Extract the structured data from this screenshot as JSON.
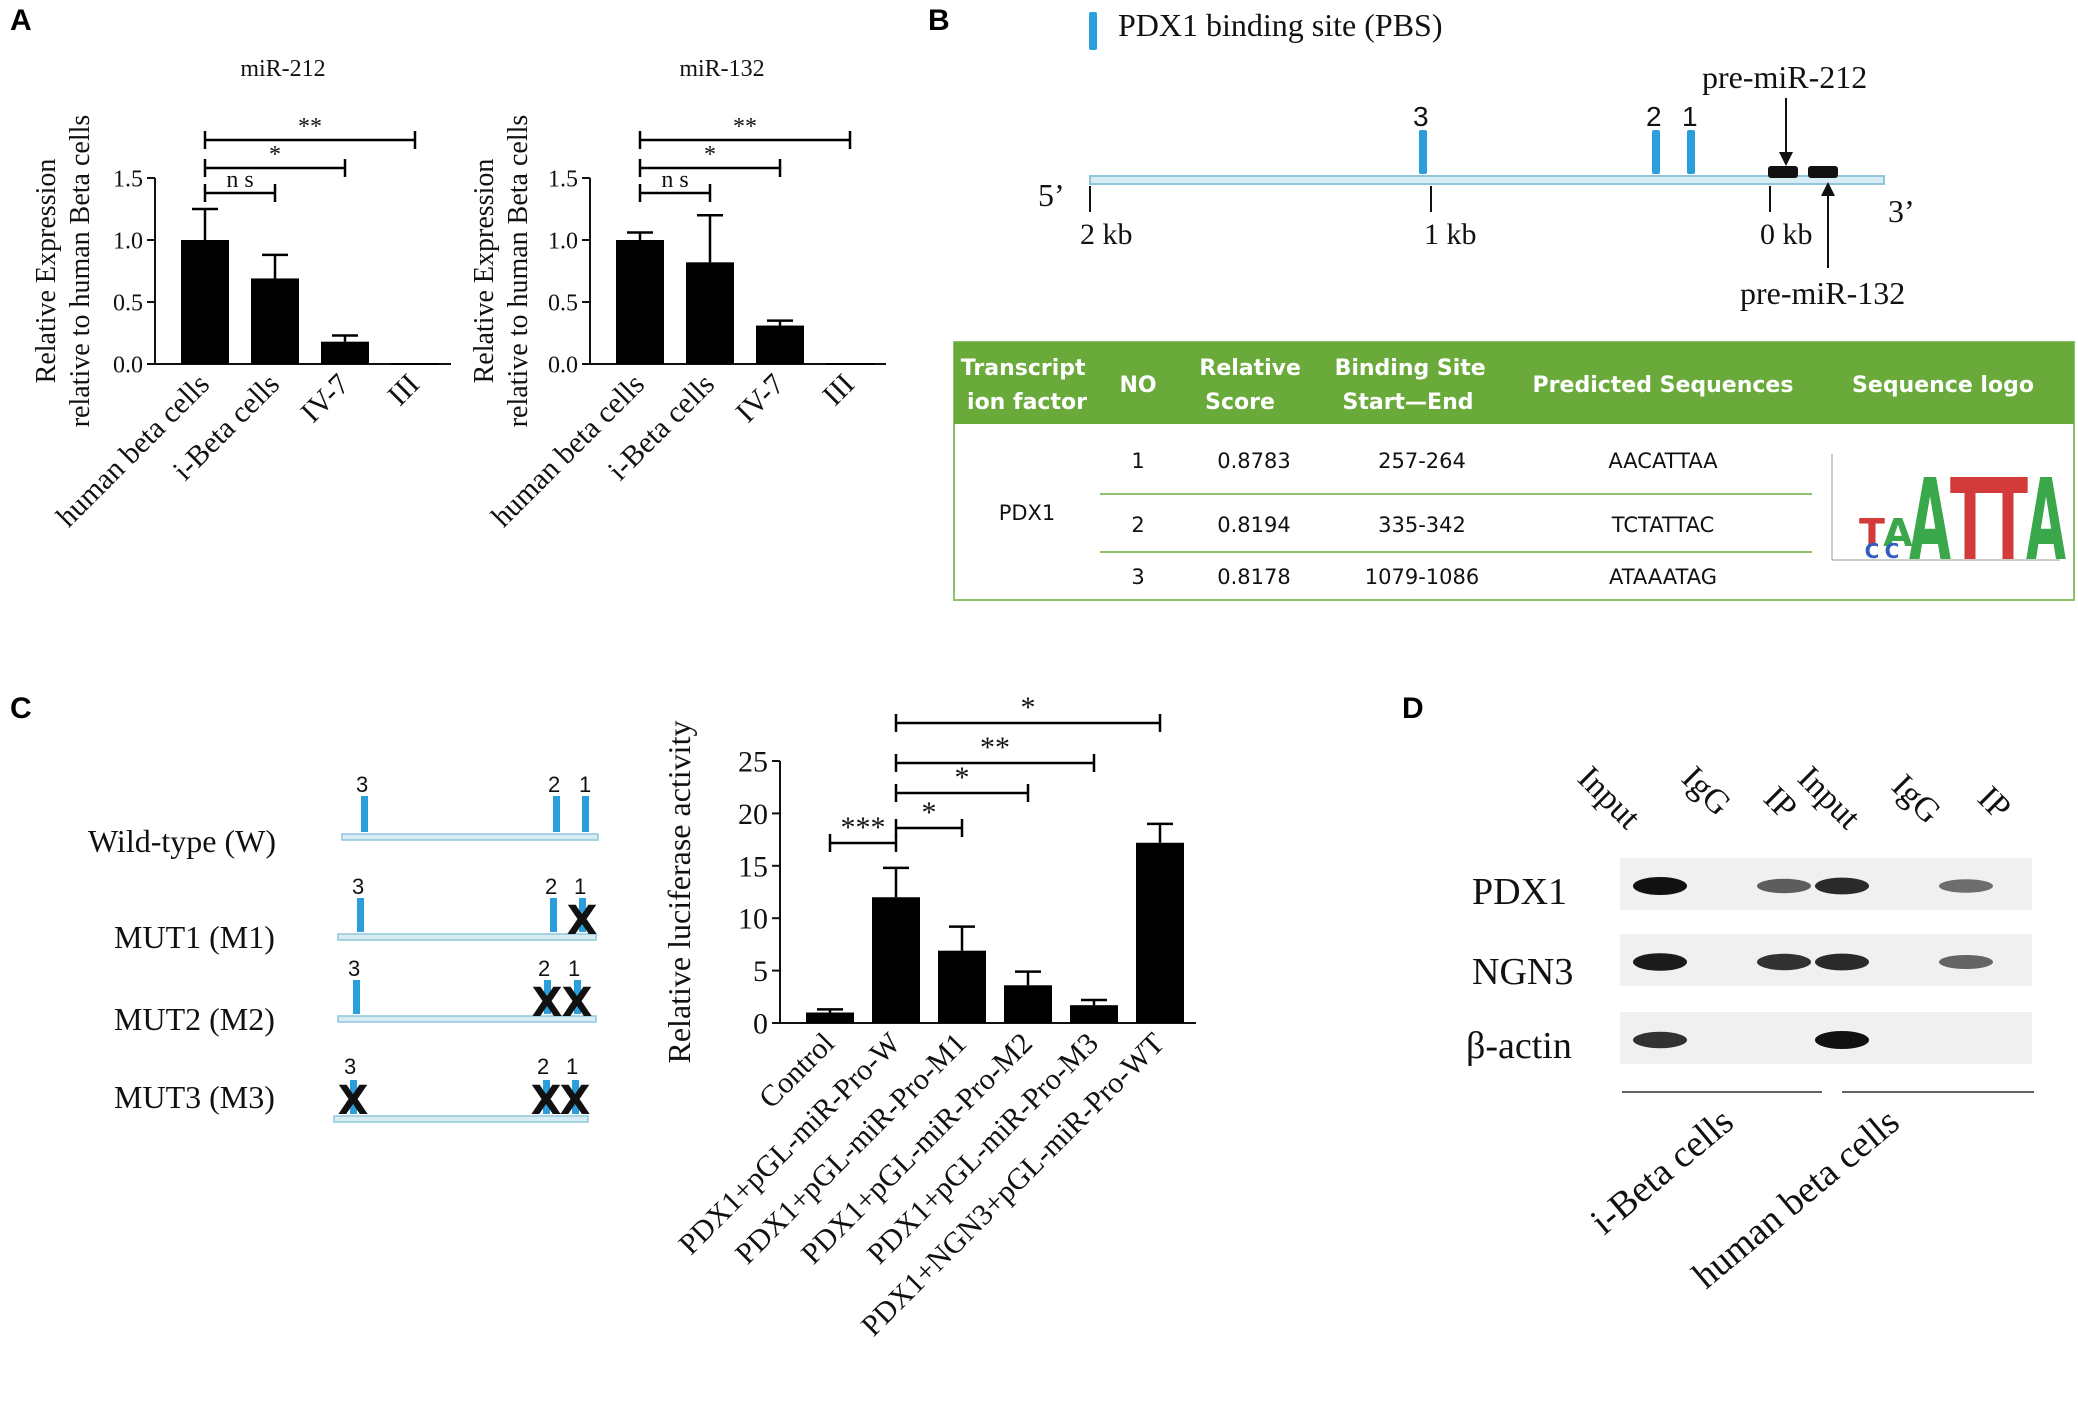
{
  "panels": {
    "a": "A",
    "b": "B",
    "c": "C",
    "d": "D"
  },
  "chart_data": [
    {
      "type": "bar",
      "panel": "A",
      "title": "miR-212",
      "ylabel_lines": [
        "Relative Expression",
        "relative to human Beta cells"
      ],
      "categories": [
        "human beta cells",
        "i-Beta cells",
        "IV-7",
        "III"
      ],
      "values": [
        1.0,
        0.69,
        0.18,
        0.0
      ],
      "errors": [
        0.25,
        0.19,
        0.05,
        0.0
      ],
      "ylim": [
        0,
        1.5
      ],
      "yticks": [
        0.0,
        0.5,
        1.0,
        1.5
      ],
      "ytick_labels": [
        "0.0",
        "0.5",
        "1.0",
        "1.5"
      ],
      "significance": [
        {
          "from": 0,
          "to": 1,
          "label": "n s"
        },
        {
          "from": 0,
          "to": 2,
          "label": "*"
        },
        {
          "from": 0,
          "to": 3,
          "label": "**"
        }
      ]
    },
    {
      "type": "bar",
      "panel": "A",
      "title": "miR-132",
      "ylabel_lines": [
        "Relative Expression",
        "relative to human Beta cells"
      ],
      "categories": [
        "human beta cells",
        "i-Beta cells",
        "IV-7",
        "III"
      ],
      "values": [
        1.0,
        0.82,
        0.31,
        0.0
      ],
      "errors": [
        0.06,
        0.38,
        0.04,
        0.0
      ],
      "ylim": [
        0,
        1.5
      ],
      "yticks": [
        0.0,
        0.5,
        1.0,
        1.5
      ],
      "ytick_labels": [
        "0.0",
        "0.5",
        "1.0",
        "1.5"
      ],
      "significance": [
        {
          "from": 0,
          "to": 1,
          "label": "n s"
        },
        {
          "from": 0,
          "to": 2,
          "label": "*"
        },
        {
          "from": 0,
          "to": 3,
          "label": "**"
        }
      ]
    },
    {
      "type": "bar",
      "panel": "C",
      "title": "",
      "ylabel": "Relative luciferase activity",
      "categories": [
        "Control",
        "PDX1+pGL-miR-Pro-W",
        "PDX1+pGL-miR-Pro-M1",
        "PDX1+pGL-miR-Pro-M2",
        "PDX1+pGL-miR-Pro-M3",
        "PDX1+NGN3+pGL-miR-Pro-WT"
      ],
      "values": [
        1.0,
        12.0,
        6.9,
        3.6,
        1.7,
        17.2
      ],
      "errors": [
        0.3,
        2.8,
        2.3,
        1.3,
        0.5,
        1.8
      ],
      "ylim": [
        0,
        25
      ],
      "yticks": [
        0,
        5,
        10,
        15,
        20,
        25
      ],
      "ytick_labels": [
        "0",
        "5",
        "10",
        "15",
        "20",
        "25"
      ],
      "significance": [
        {
          "from": 0,
          "to": 1,
          "label": "***"
        },
        {
          "from": 1,
          "to": 2,
          "label": "*"
        },
        {
          "from": 1,
          "to": 3,
          "label": "*"
        },
        {
          "from": 1,
          "to": 4,
          "label": "**"
        },
        {
          "from": 1,
          "to": 5,
          "label": "*"
        }
      ]
    }
  ],
  "panelB": {
    "legend_label": "PDX1 binding site (PBS)",
    "prime5": "5’",
    "prime3": "3’",
    "scale_labels": [
      "2 kb",
      "1 kb",
      "0 kb"
    ],
    "site_labels": [
      "3",
      "2",
      "1"
    ],
    "pre_mir_212": "pre-miR-212",
    "pre_mir_132": "pre-miR-132",
    "table": {
      "headers": [
        [
          "Transcript",
          "ion factor"
        ],
        [
          "NO"
        ],
        [
          "Relative",
          "Score"
        ],
        [
          "Binding Site",
          "Start—End"
        ],
        [
          "Predicted Sequences"
        ],
        [
          "Sequence logo"
        ]
      ],
      "factor": "PDX1",
      "rows": [
        {
          "no": "1",
          "score": "0.8783",
          "range": "257-264",
          "sequence": "AACATTAA"
        },
        {
          "no": "2",
          "score": "0.8194",
          "range": "335-342",
          "sequence": "TCTATTAC"
        },
        {
          "no": "3",
          "score": "0.8178",
          "range": "1079-1086",
          "sequence": "ATAAATAG"
        }
      ],
      "logo_letters": [
        "T",
        "A",
        "C",
        "C",
        "A",
        "T",
        "T",
        "A"
      ],
      "header_color": "#6aaa3a",
      "border_color": "#8dc16a"
    }
  },
  "panelC_constructs": [
    {
      "label": "Wild-type (W)",
      "sites": [
        {
          "n": "3",
          "mutated": false
        },
        {
          "n": "2",
          "mutated": false
        },
        {
          "n": "1",
          "mutated": false
        }
      ]
    },
    {
      "label": "MUT1 (M1)",
      "sites": [
        {
          "n": "3",
          "mutated": false
        },
        {
          "n": "2",
          "mutated": false
        },
        {
          "n": "1",
          "mutated": true
        }
      ]
    },
    {
      "label": "MUT2 (M2)",
      "sites": [
        {
          "n": "3",
          "mutated": false
        },
        {
          "n": "2",
          "mutated": true
        },
        {
          "n": "1",
          "mutated": true
        }
      ]
    },
    {
      "label": "MUT3 (M3)",
      "sites": [
        {
          "n": "3",
          "mutated": true
        },
        {
          "n": "2",
          "mutated": true
        },
        {
          "n": "1",
          "mutated": true
        }
      ]
    }
  ],
  "panelD": {
    "lanes": [
      "Input",
      "IgG",
      "IP",
      "Input",
      "IgG",
      "IP"
    ],
    "rows": [
      "PDX1",
      "NGN3",
      "β-actin"
    ],
    "groups": [
      "i-Beta cells",
      "human beta cells"
    ],
    "band_intensity": [
      [
        1.0,
        0.0,
        0.55,
        0.85,
        0.0,
        0.45
      ],
      [
        0.95,
        0.0,
        0.8,
        0.85,
        0.0,
        0.5
      ],
      [
        0.8,
        0.0,
        0.0,
        1.0,
        0.0,
        0.0
      ]
    ]
  },
  "colors": {
    "site": "#2b9fdb",
    "line": "#a9cfe0",
    "bar": "#000000"
  }
}
